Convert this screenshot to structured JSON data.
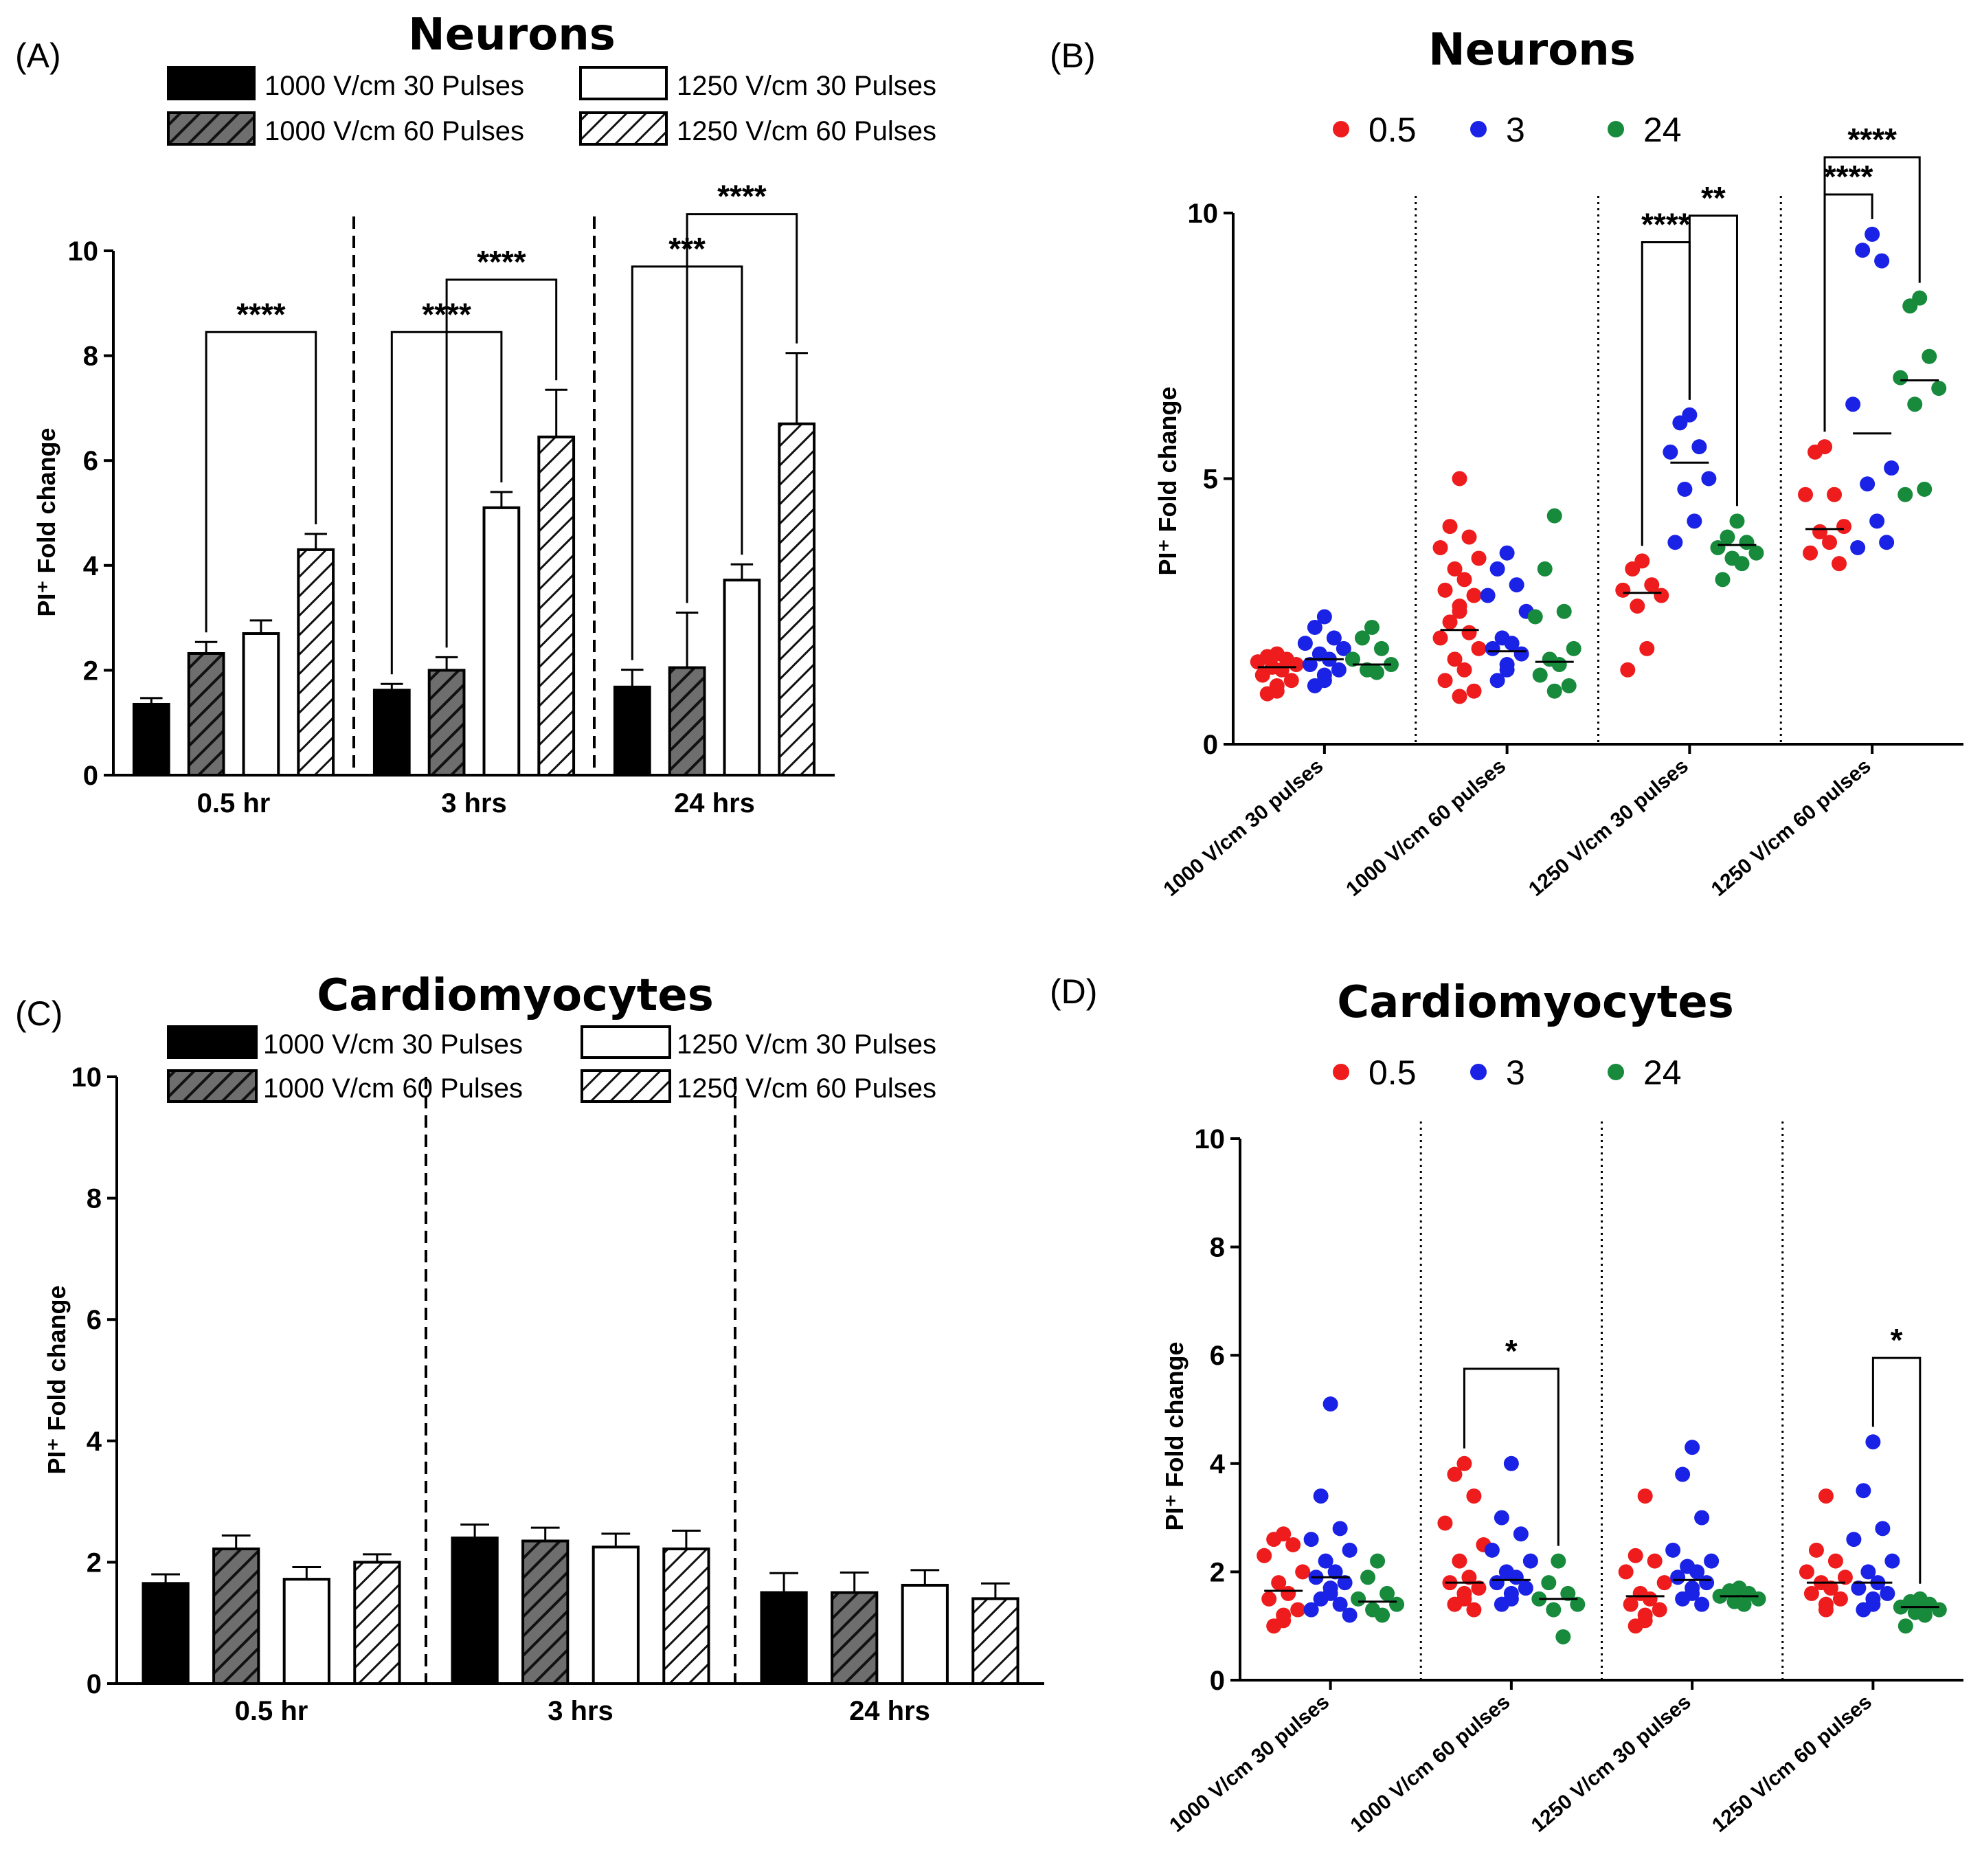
{
  "chart_data": [
    {
      "id": "A",
      "panel_label": "(A)",
      "type": "bar",
      "title": "Neurons",
      "ylabel": "PI⁺ Fold change",
      "ylim": [
        0,
        10
      ],
      "yticks": [
        "0",
        "2",
        "4",
        "6",
        "8",
        "10"
      ],
      "groups": [
        "0.5 hr",
        "3 hrs",
        "24 hrs"
      ],
      "series": [
        {
          "name": "1000 V/cm 30 Pulses",
          "style": "black",
          "values": [
            1.35,
            1.62,
            1.68
          ],
          "errors": [
            0.12,
            0.12,
            0.33
          ]
        },
        {
          "name": "1000 V/cm 60 Pulses",
          "style": "grey-hatch",
          "values": [
            2.32,
            2.0,
            2.05
          ],
          "errors": [
            0.22,
            0.25,
            1.05
          ]
        },
        {
          "name": "1250 V/cm 30 Pulses",
          "style": "white",
          "values": [
            2.7,
            5.1,
            3.72
          ],
          "errors": [
            0.25,
            0.3,
            0.3
          ]
        },
        {
          "name": "1250 V/cm 60 Pulses",
          "style": "white-hatch",
          "values": [
            4.3,
            6.45,
            6.7
          ],
          "errors": [
            0.3,
            0.9,
            1.35
          ]
        }
      ],
      "brackets": [
        {
          "g1": 0,
          "s1": 1,
          "g2": 0,
          "s2": 3,
          "y": 8.45,
          "label": "****"
        },
        {
          "g1": 1,
          "s1": 0,
          "g2": 1,
          "s2": 2,
          "y": 8.45,
          "label": "****"
        },
        {
          "g1": 1,
          "s1": 1,
          "g2": 1,
          "s2": 3,
          "y": 9.45,
          "label": "****"
        },
        {
          "g1": 2,
          "s1": 0,
          "g2": 2,
          "s2": 2,
          "y": 9.7,
          "label": "***"
        },
        {
          "g1": 2,
          "s1": 1,
          "g2": 2,
          "s2": 3,
          "y": 10.7,
          "label": "****"
        }
      ]
    },
    {
      "id": "B",
      "panel_label": "(B)",
      "type": "scatter",
      "title": "Neurons",
      "ylabel": "PI⁺ Fold change",
      "ylim": [
        0,
        10
      ],
      "yticks": [
        "0",
        "5",
        "10"
      ],
      "categories": [
        "1000 V/cm  30 pulses",
        "1000 V/cm  60 pulses",
        "1250 V/cm  30 pulses",
        "1250 V/cm  60 pulses"
      ],
      "series": [
        {
          "name": "0.5",
          "color": "#ee1c1c",
          "points": [
            [
              1.7,
              1.65,
              1.6,
              1.55,
              1.5,
              1.45,
              1.4,
              1.3,
              1.2,
              1.1,
              1.0,
              0.95
            ],
            [
              5.0,
              4.1,
              3.9,
              3.7,
              3.5,
              3.3,
              3.1,
              2.9,
              2.8,
              2.6,
              2.5,
              2.3,
              2.1,
              2.0,
              1.8,
              1.6,
              1.4,
              1.2,
              1.0,
              0.9
            ],
            [
              3.45,
              3.3,
              3.0,
              2.9,
              2.8,
              2.6,
              1.8,
              1.4
            ],
            [
              5.6,
              5.5,
              4.7,
              4.7,
              4.1,
              4.0,
              3.8,
              3.6,
              3.4
            ]
          ],
          "medians": [
            1.45,
            2.15,
            2.85,
            4.05
          ]
        },
        {
          "name": "3",
          "color": "#1a22e6",
          "points": [
            [
              2.4,
              2.2,
              2.0,
              1.9,
              1.8,
              1.7,
              1.6,
              1.5,
              1.4,
              1.3,
              1.2,
              1.1
            ],
            [
              3.6,
              3.3,
              3.0,
              2.8,
              2.5,
              2.0,
              1.9,
              1.8,
              1.7,
              1.5,
              1.4,
              1.2
            ],
            [
              6.2,
              6.05,
              5.6,
              5.5,
              5.0,
              4.8,
              4.2,
              3.8
            ],
            [
              9.6,
              9.3,
              9.1,
              6.4,
              5.2,
              4.9,
              4.2,
              3.7,
              3.8
            ]
          ],
          "medians": [
            1.6,
            1.75,
            5.3,
            5.85
          ]
        },
        {
          "name": "24",
          "color": "#178a3c",
          "points": [
            [
              2.2,
              2.0,
              1.8,
              1.6,
              1.5,
              1.4,
              1.35
            ],
            [
              4.3,
              3.3,
              2.5,
              2.4,
              1.8,
              1.6,
              1.5,
              1.3,
              1.1,
              1.0
            ],
            [
              4.2,
              3.9,
              3.8,
              3.7,
              3.6,
              3.5,
              3.4,
              3.1
            ],
            [
              8.4,
              8.25,
              7.3,
              6.9,
              6.7,
              6.4,
              4.8,
              4.7
            ]
          ],
          "medians": [
            1.5,
            1.55,
            3.75,
            6.85
          ]
        }
      ],
      "brackets": [
        {
          "c1": 2,
          "s1": 0,
          "c2": 2,
          "s2": 1,
          "y": 9.45,
          "label": "****"
        },
        {
          "c1": 2,
          "s1": 1,
          "c2": 2,
          "s2": 2,
          "y": 9.95,
          "label": "**"
        },
        {
          "c1": 3,
          "s1": 0,
          "c2": 3,
          "s2": 1,
          "y": 10.35,
          "label": "****"
        },
        {
          "c1": 3,
          "s1": 0,
          "c2": 3,
          "s2": 2,
          "y": 11.05,
          "label": "****"
        }
      ]
    },
    {
      "id": "C",
      "panel_label": "(C)",
      "type": "bar",
      "title": "Cardiomyocytes",
      "ylabel": "PI⁺ Fold change",
      "ylim": [
        0,
        10
      ],
      "yticks": [
        "0",
        "2",
        "4",
        "6",
        "8",
        "10"
      ],
      "groups": [
        "0.5 hr",
        "3 hrs",
        "24 hrs"
      ],
      "series": [
        {
          "name": "1000 V/cm 30 Pulses",
          "style": "black",
          "values": [
            1.65,
            2.4,
            1.5
          ],
          "errors": [
            0.15,
            0.22,
            0.32
          ]
        },
        {
          "name": "1000 V/cm 60 Pulses",
          "style": "grey-hatch",
          "values": [
            2.22,
            2.35,
            1.5
          ],
          "errors": [
            0.22,
            0.22,
            0.33
          ]
        },
        {
          "name": "1250 V/cm 30 Pulses",
          "style": "white",
          "values": [
            1.72,
            2.25,
            1.62
          ],
          "errors": [
            0.2,
            0.22,
            0.25
          ]
        },
        {
          "name": "1250 V/cm 60 Pulses",
          "style": "white-hatch",
          "values": [
            2.0,
            2.22,
            1.4
          ],
          "errors": [
            0.13,
            0.3,
            0.25
          ]
        }
      ],
      "brackets": []
    },
    {
      "id": "D",
      "panel_label": "(D)",
      "type": "scatter",
      "title": "Cardiomyocytes",
      "ylabel": "PI⁺ Fold change",
      "ylim": [
        0,
        10
      ],
      "yticks": [
        "0",
        "2",
        "4",
        "6",
        "8",
        "10"
      ],
      "categories": [
        "1000 V/cm  30 pulses",
        "1000 V/cm  60 pulses",
        "1250 V/cm  30 pulses",
        "1250 V/cm  60 pulses"
      ],
      "series": [
        {
          "name": "0.5",
          "color": "#ee1c1c",
          "points": [
            [
              2.7,
              2.6,
              2.5,
              2.3,
              2.0,
              1.8,
              1.6,
              1.5,
              1.3,
              1.2,
              1.1,
              1.0
            ],
            [
              4.0,
              3.8,
              3.4,
              2.9,
              2.5,
              2.2,
              1.9,
              1.8,
              1.7,
              1.6,
              1.5,
              1.4,
              1.3
            ],
            [
              3.4,
              2.3,
              2.2,
              2.0,
              1.8,
              1.6,
              1.5,
              1.4,
              1.3,
              1.2,
              1.1,
              1.0
            ],
            [
              3.4,
              2.4,
              2.2,
              2.0,
              1.9,
              1.8,
              1.7,
              1.6,
              1.5,
              1.4,
              1.3
            ]
          ],
          "medians": [
            1.65,
            1.8,
            1.55,
            1.8
          ]
        },
        {
          "name": "3",
          "color": "#1a22e6",
          "points": [
            [
              5.1,
              3.4,
              2.8,
              2.6,
              2.4,
              2.2,
              2.0,
              1.9,
              1.8,
              1.7,
              1.6,
              1.5,
              1.4,
              1.3,
              1.2
            ],
            [
              4.0,
              3.0,
              2.7,
              2.4,
              2.2,
              2.0,
              1.9,
              1.8,
              1.7,
              1.6,
              1.5,
              1.4
            ],
            [
              4.3,
              3.8,
              3.0,
              2.4,
              2.2,
              2.1,
              2.0,
              1.9,
              1.8,
              1.7,
              1.6,
              1.5,
              1.4
            ],
            [
              4.4,
              3.5,
              2.8,
              2.6,
              2.2,
              2.0,
              1.8,
              1.7,
              1.6,
              1.5,
              1.4,
              1.3
            ]
          ],
          "medians": [
            1.9,
            1.85,
            1.85,
            1.8
          ]
        },
        {
          "name": "24",
          "color": "#178a3c",
          "points": [
            [
              2.2,
              1.9,
              1.6,
              1.5,
              1.4,
              1.3,
              1.2
            ],
            [
              2.2,
              1.8,
              1.6,
              1.5,
              1.4,
              1.3,
              0.8
            ],
            [
              1.7,
              1.65,
              1.6,
              1.55,
              1.5,
              1.45,
              1.4
            ],
            [
              1.5,
              1.45,
              1.4,
              1.35,
              1.3,
              1.25,
              1.2,
              1.0
            ]
          ],
          "medians": [
            1.45,
            1.5,
            1.55,
            1.35
          ]
        }
      ],
      "brackets": [
        {
          "c1": 1,
          "s1": 0,
          "c2": 1,
          "s2": 2,
          "y": 5.75,
          "label": "*"
        },
        {
          "c1": 3,
          "s1": 1,
          "c2": 3,
          "s2": 2,
          "y": 5.95,
          "label": "*"
        }
      ]
    }
  ]
}
